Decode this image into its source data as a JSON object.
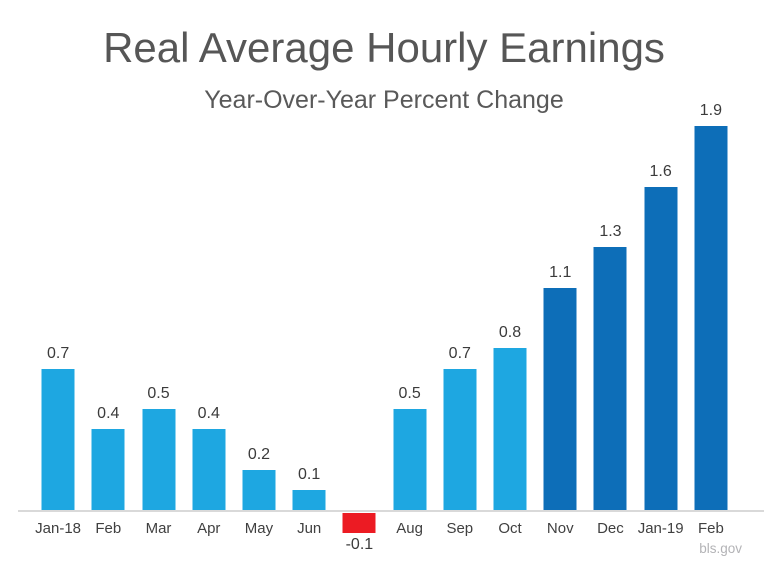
{
  "chart": {
    "title": "Real Average Hourly Earnings",
    "subtitle": "Year-Over-Year Percent Change",
    "source": "bls.gov"
  },
  "chart_data": {
    "type": "bar",
    "title": "Real Average Hourly Earnings",
    "subtitle": "Year-Over-Year Percent Change",
    "xlabel": "",
    "ylabel": "",
    "categories": [
      "Jan-18",
      "Feb",
      "Mar",
      "Apr",
      "May",
      "Jun",
      "",
      "Aug",
      "Sep",
      "Oct",
      "Nov",
      "Dec",
      "Jan-19",
      "Feb"
    ],
    "values": [
      0.7,
      0.4,
      0.5,
      0.4,
      0.2,
      0.1,
      -0.1,
      0.5,
      0.7,
      0.8,
      1.1,
      1.3,
      1.6,
      1.9
    ],
    "value_labels": [
      "0.7",
      "0.4",
      "0.5",
      "0.4",
      "0.2",
      "0.1",
      "-0.1",
      "0.5",
      "0.7",
      "0.8",
      "1.1",
      "1.3",
      "1.6",
      "1.9"
    ],
    "bar_color_keys": [
      "light",
      "light",
      "light",
      "light",
      "light",
      "light",
      "negative",
      "light",
      "light",
      "light",
      "dark",
      "dark",
      "dark",
      "dark"
    ],
    "palette": {
      "light": "#1ea7e1",
      "dark": "#0d6eb8",
      "negative": "#ec1b23"
    },
    "ylim": [
      -0.2,
      2.0
    ],
    "grid": false,
    "legend": false,
    "axis_line_color": "#d9d9d9",
    "source": "bls.gov"
  }
}
